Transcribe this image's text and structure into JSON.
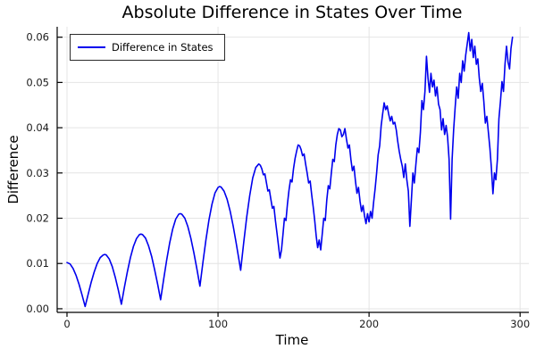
{
  "chart_data": {
    "type": "line",
    "title": "Absolute Difference in States Over Time",
    "xlabel": "Time",
    "ylabel": "Difference",
    "xlim": [
      -6.5,
      305.8
    ],
    "ylim": [
      -0.0008,
      0.0623
    ],
    "grid": true,
    "xticks": {
      "values": [
        0,
        100,
        200,
        300
      ],
      "labels": [
        "0",
        "100",
        "200",
        "300"
      ]
    },
    "yticks": {
      "values": [
        0.0,
        0.01,
        0.02,
        0.03,
        0.04,
        0.05,
        0.06
      ],
      "labels": [
        "0.00",
        "0.01",
        "0.02",
        "0.03",
        "0.04",
        "0.05",
        "0.06"
      ]
    },
    "legend": {
      "position": "top-left",
      "entries": [
        {
          "label": "Difference in States",
          "color": "#0000ee"
        }
      ]
    },
    "series": [
      {
        "name": "Difference in States",
        "color": "#0000ee",
        "points": [
          [
            0,
            0.0102
          ],
          [
            2,
            0.0099
          ],
          [
            4,
            0.0089
          ],
          [
            6,
            0.0074
          ],
          [
            8,
            0.0054
          ],
          [
            10,
            0.003
          ],
          [
            12,
            0.0005
          ],
          [
            14,
            0.0032
          ],
          [
            16,
            0.0058
          ],
          [
            18,
            0.0081
          ],
          [
            20,
            0.01
          ],
          [
            22,
            0.0113
          ],
          [
            24,
            0.0119
          ],
          [
            25,
            0.012
          ],
          [
            26,
            0.0119
          ],
          [
            28,
            0.011
          ],
          [
            30,
            0.0093
          ],
          [
            32,
            0.0069
          ],
          [
            34,
            0.0041
          ],
          [
            36,
            0.001
          ],
          [
            38,
            0.0047
          ],
          [
            40,
            0.0082
          ],
          [
            42,
            0.0113
          ],
          [
            44,
            0.0138
          ],
          [
            46,
            0.0155
          ],
          [
            48,
            0.0164
          ],
          [
            49,
            0.0165
          ],
          [
            50,
            0.0164
          ],
          [
            52,
            0.0156
          ],
          [
            54,
            0.0139
          ],
          [
            56,
            0.0116
          ],
          [
            58,
            0.0087
          ],
          [
            60,
            0.0055
          ],
          [
            62,
            0.002
          ],
          [
            64,
            0.0065
          ],
          [
            66,
            0.0108
          ],
          [
            68,
            0.0146
          ],
          [
            70,
            0.0176
          ],
          [
            72,
            0.0198
          ],
          [
            74,
            0.0209
          ],
          [
            75,
            0.021
          ],
          [
            76,
            0.0209
          ],
          [
            78,
            0.02
          ],
          [
            80,
            0.0182
          ],
          [
            82,
            0.0156
          ],
          [
            84,
            0.0124
          ],
          [
            86,
            0.0088
          ],
          [
            88,
            0.005
          ],
          [
            90,
            0.0103
          ],
          [
            92,
            0.0152
          ],
          [
            94,
            0.0196
          ],
          [
            96,
            0.0231
          ],
          [
            98,
            0.0256
          ],
          [
            100,
            0.0268
          ],
          [
            101,
            0.027
          ],
          [
            102,
            0.0269
          ],
          [
            104,
            0.026
          ],
          [
            106,
            0.0242
          ],
          [
            108,
            0.0216
          ],
          [
            110,
            0.0183
          ],
          [
            112,
            0.0146
          ],
          [
            114,
            0.0106
          ],
          [
            115,
            0.0085
          ],
          [
            117,
            0.0146
          ],
          [
            119,
            0.0203
          ],
          [
            121,
            0.0251
          ],
          [
            123,
            0.0289
          ],
          [
            125,
            0.0312
          ],
          [
            127,
            0.032
          ],
          [
            128,
            0.0317
          ],
          [
            129,
            0.0309
          ],
          [
            130,
            0.0296
          ],
          [
            131,
            0.0298
          ],
          [
            132,
            0.0279
          ],
          [
            133,
            0.026
          ],
          [
            134,
            0.0263
          ],
          [
            135,
            0.0242
          ],
          [
            136,
            0.0222
          ],
          [
            137,
            0.0226
          ],
          [
            138,
            0.0195
          ],
          [
            139,
            0.0168
          ],
          [
            140,
            0.014
          ],
          [
            141,
            0.0112
          ],
          [
            142,
            0.013
          ],
          [
            143,
            0.0165
          ],
          [
            144,
            0.02
          ],
          [
            145,
            0.0195
          ],
          [
            146,
            0.0232
          ],
          [
            147,
            0.0262
          ],
          [
            148,
            0.0285
          ],
          [
            149,
            0.028
          ],
          [
            150,
            0.031
          ],
          [
            151,
            0.0332
          ],
          [
            152,
            0.0348
          ],
          [
            153,
            0.0362
          ],
          [
            154,
            0.036
          ],
          [
            155,
            0.0352
          ],
          [
            156,
            0.0338
          ],
          [
            157,
            0.0342
          ],
          [
            158,
            0.032
          ],
          [
            159,
            0.03
          ],
          [
            160,
            0.0278
          ],
          [
            161,
            0.0282
          ],
          [
            162,
            0.0252
          ],
          [
            163,
            0.0225
          ],
          [
            164,
            0.0195
          ],
          [
            165,
            0.016
          ],
          [
            166,
            0.0135
          ],
          [
            167,
            0.0152
          ],
          [
            168,
            0.013
          ],
          [
            169,
            0.0165
          ],
          [
            170,
            0.02
          ],
          [
            171,
            0.0195
          ],
          [
            172,
            0.024
          ],
          [
            173,
            0.0272
          ],
          [
            174,
            0.0265
          ],
          [
            175,
            0.03
          ],
          [
            176,
            0.033
          ],
          [
            177,
            0.0325
          ],
          [
            178,
            0.0362
          ],
          [
            179,
            0.0385
          ],
          [
            180,
            0.0398
          ],
          [
            181,
            0.0395
          ],
          [
            182,
            0.038
          ],
          [
            183,
            0.0385
          ],
          [
            184,
            0.0398
          ],
          [
            185,
            0.0375
          ],
          [
            186,
            0.0355
          ],
          [
            187,
            0.0362
          ],
          [
            188,
            0.033
          ],
          [
            189,
            0.0305
          ],
          [
            190,
            0.0315
          ],
          [
            191,
            0.0282
          ],
          [
            192,
            0.0255
          ],
          [
            193,
            0.0268
          ],
          [
            194,
            0.0238
          ],
          [
            195,
            0.0215
          ],
          [
            196,
            0.0228
          ],
          [
            197,
            0.0205
          ],
          [
            198,
            0.0188
          ],
          [
            199,
            0.021
          ],
          [
            200,
            0.0192
          ],
          [
            201,
            0.0215
          ],
          [
            202,
            0.02
          ],
          [
            203,
            0.0235
          ],
          [
            204,
            0.0265
          ],
          [
            205,
            0.03
          ],
          [
            206,
            0.034
          ],
          [
            207,
            0.036
          ],
          [
            208,
            0.0405
          ],
          [
            209,
            0.043
          ],
          [
            210,
            0.0455
          ],
          [
            211,
            0.044
          ],
          [
            212,
            0.0448
          ],
          [
            213,
            0.043
          ],
          [
            214,
            0.0415
          ],
          [
            215,
            0.0425
          ],
          [
            216,
            0.0408
          ],
          [
            217,
            0.0412
          ],
          [
            218,
            0.0395
          ],
          [
            219,
            0.037
          ],
          [
            220,
            0.0348
          ],
          [
            221,
            0.033
          ],
          [
            222,
            0.0315
          ],
          [
            223,
            0.029
          ],
          [
            224,
            0.032
          ],
          [
            225,
            0.0285
          ],
          [
            226,
            0.026
          ],
          [
            227,
            0.0182
          ],
          [
            228,
            0.024
          ],
          [
            229,
            0.03
          ],
          [
            230,
            0.0278
          ],
          [
            231,
            0.0318
          ],
          [
            232,
            0.0355
          ],
          [
            233,
            0.0345
          ],
          [
            234,
            0.039
          ],
          [
            235,
            0.046
          ],
          [
            236,
            0.044
          ],
          [
            237,
            0.048
          ],
          [
            238,
            0.0558
          ],
          [
            239,
            0.051
          ],
          [
            240,
            0.0478
          ],
          [
            241,
            0.052
          ],
          [
            242,
            0.049
          ],
          [
            243,
            0.0505
          ],
          [
            244,
            0.047
          ],
          [
            245,
            0.049
          ],
          [
            246,
            0.0452
          ],
          [
            247,
            0.044
          ],
          [
            248,
            0.0395
          ],
          [
            249,
            0.042
          ],
          [
            250,
            0.0385
          ],
          [
            251,
            0.0405
          ],
          [
            252,
            0.038
          ],
          [
            253,
            0.033
          ],
          [
            254,
            0.0198
          ],
          [
            255,
            0.033
          ],
          [
            256,
            0.0395
          ],
          [
            257,
            0.0445
          ],
          [
            258,
            0.049
          ],
          [
            259,
            0.0465
          ],
          [
            260,
            0.052
          ],
          [
            261,
            0.05
          ],
          [
            262,
            0.0548
          ],
          [
            263,
            0.0525
          ],
          [
            264,
            0.056
          ],
          [
            265,
            0.0585
          ],
          [
            266,
            0.061
          ],
          [
            267,
            0.057
          ],
          [
            268,
            0.0595
          ],
          [
            269,
            0.0555
          ],
          [
            270,
            0.058
          ],
          [
            271,
            0.054
          ],
          [
            272,
            0.0552
          ],
          [
            273,
            0.051
          ],
          [
            274,
            0.048
          ],
          [
            275,
            0.0498
          ],
          [
            276,
            0.0458
          ],
          [
            277,
            0.041
          ],
          [
            278,
            0.0425
          ],
          [
            279,
            0.039
          ],
          [
            280,
            0.0355
          ],
          [
            281,
            0.031
          ],
          [
            282,
            0.0254
          ],
          [
            283,
            0.03
          ],
          [
            284,
            0.0285
          ],
          [
            285,
            0.033
          ],
          [
            286,
            0.042
          ],
          [
            287,
            0.0458
          ],
          [
            288,
            0.0502
          ],
          [
            289,
            0.048
          ],
          [
            290,
            0.054
          ],
          [
            291,
            0.058
          ],
          [
            292,
            0.0545
          ],
          [
            293,
            0.053
          ],
          [
            294,
            0.0575
          ],
          [
            295,
            0.06
          ]
        ]
      }
    ]
  },
  "colors": {
    "line": "#0000ee",
    "grid": "#e4e4e4",
    "axis": "#000000",
    "tick_label": "#1a1a1a",
    "legend_border": "#2b2b2b",
    "background": "#ffffff"
  }
}
